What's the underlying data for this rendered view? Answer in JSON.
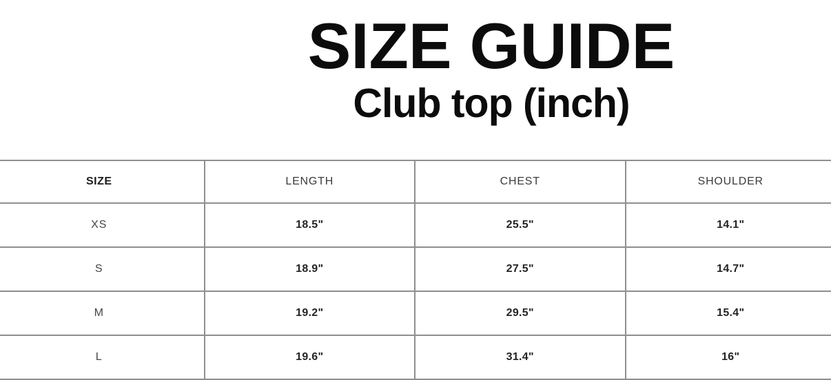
{
  "header": {
    "title": "SIZE GUIDE",
    "subtitle": "Club top (inch)"
  },
  "chart_data": {
    "type": "table",
    "title": "SIZE GUIDE",
    "subtitle": "Club top (inch)",
    "units": "inch",
    "columns": [
      "SIZE",
      "LENGTH",
      "CHEST",
      "SHOULDER"
    ],
    "rows": [
      [
        "XS",
        "18.5\"",
        "25.5\"",
        "14.1\""
      ],
      [
        "S",
        "18.9\"",
        "27.5\"",
        "14.7\""
      ],
      [
        "M",
        "19.2\"",
        "29.5\"",
        "15.4\""
      ],
      [
        "L",
        "19.6\"",
        "31.4\"",
        "16\""
      ]
    ]
  },
  "colors": {
    "background": "#ffffff",
    "heading_text": "#0c0c0c",
    "table_border": "#8f8f8f",
    "header_text": "#3a3a3a",
    "value_text": "#242424"
  }
}
